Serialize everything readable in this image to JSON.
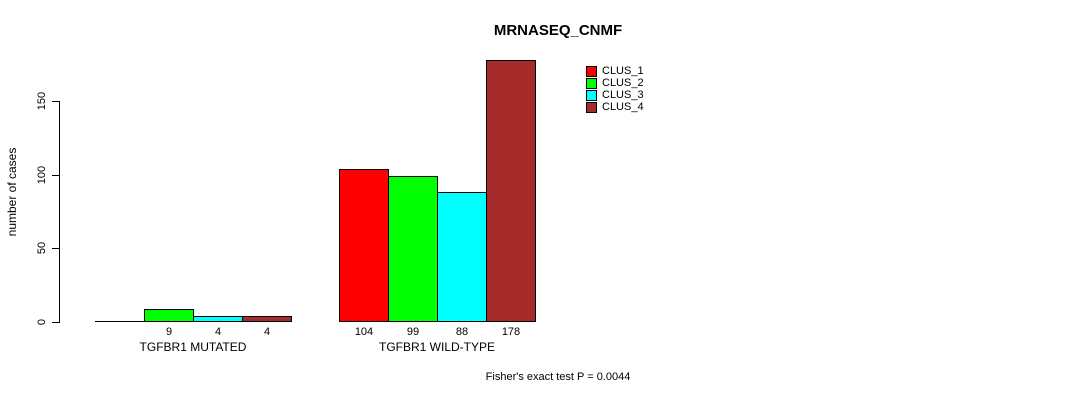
{
  "chart_data": {
    "type": "bar",
    "title": "MRNASEQ_CNMF",
    "ylabel": "number of cases",
    "xlabel": "",
    "categories": [
      "TGFBR1 MUTATED",
      "TGFBR1 WILD-TYPE"
    ],
    "series": [
      {
        "name": "CLUS_1",
        "color": "#FF0000",
        "values": [
          0,
          104
        ]
      },
      {
        "name": "CLUS_2",
        "color": "#00FF00",
        "values": [
          9,
          99
        ]
      },
      {
        "name": "CLUS_3",
        "color": "#00FFFF",
        "values": [
          4,
          88
        ]
      },
      {
        "name": "CLUS_4",
        "color": "#A52A2A",
        "values": [
          4,
          178
        ]
      }
    ],
    "bar_value_labels": {
      "visible": true,
      "hide_zero": true
    },
    "yticks": [
      0,
      50,
      100,
      150
    ],
    "ylim": [
      0,
      185
    ],
    "grid": false,
    "legend": {
      "position": "top-right",
      "entries": [
        "CLUS_1",
        "CLUS_2",
        "CLUS_3",
        "CLUS_4"
      ]
    },
    "annotation": "Fisher's exact test P = 0.0044"
  }
}
